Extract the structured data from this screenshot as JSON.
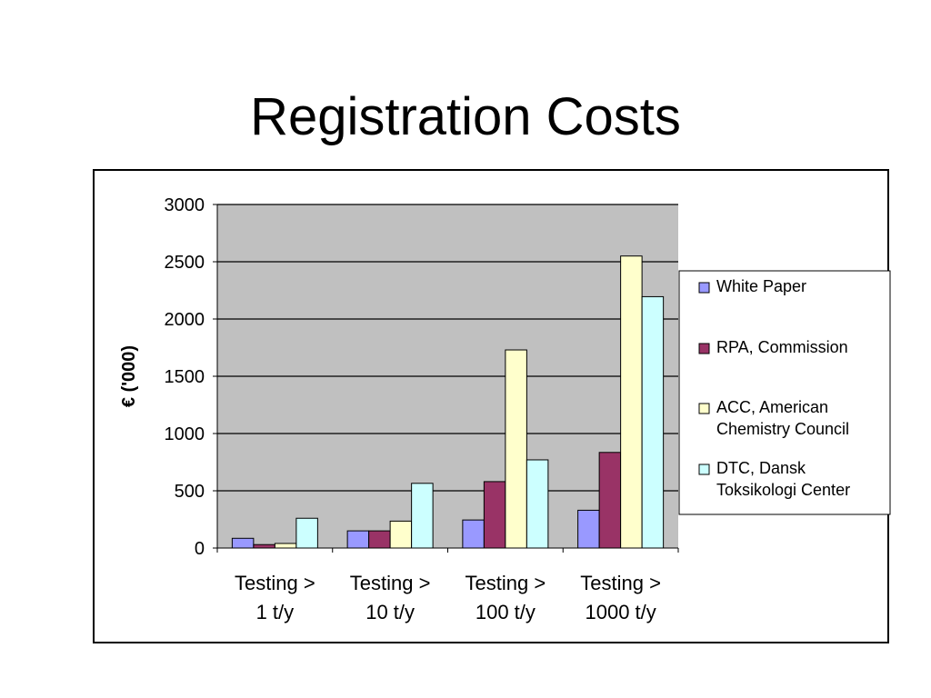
{
  "slide": {
    "title": "Registration Costs"
  },
  "chart_data": {
    "type": "bar",
    "ylabel": "€ ('000)",
    "xlabel": "",
    "ylim": [
      0,
      3000
    ],
    "yticks": [
      0,
      500,
      1000,
      1500,
      2000,
      2500,
      3000
    ],
    "grid": true,
    "legend_position": "right",
    "categories": [
      [
        "Testing >",
        "1 t/y"
      ],
      [
        "Testing >",
        "10 t/y"
      ],
      [
        "Testing >",
        "100 t/y"
      ],
      [
        "Testing >",
        "1000 t/y"
      ]
    ],
    "series": [
      {
        "name": "White Paper",
        "legend_lines": [
          "White Paper"
        ],
        "color": "#9999ff",
        "values": [
          85,
          150,
          245,
          330
        ]
      },
      {
        "name": "RPA, Commission",
        "legend_lines": [
          "RPA, Commission"
        ],
        "color": "#993366",
        "values": [
          30,
          150,
          580,
          835
        ]
      },
      {
        "name": "ACC, American Chemistry Council",
        "legend_lines": [
          "ACC, American",
          "Chemistry Council"
        ],
        "color": "#ffffcc",
        "values": [
          40,
          235,
          1730,
          2550
        ]
      },
      {
        "name": "DTC, Dansk Toksikologi Center",
        "legend_lines": [
          "DTC, Dansk",
          "Toksikologi Center"
        ],
        "color": "#ccffff",
        "values": [
          260,
          565,
          770,
          2195
        ]
      }
    ],
    "plot_background": "#c0c0c0"
  }
}
